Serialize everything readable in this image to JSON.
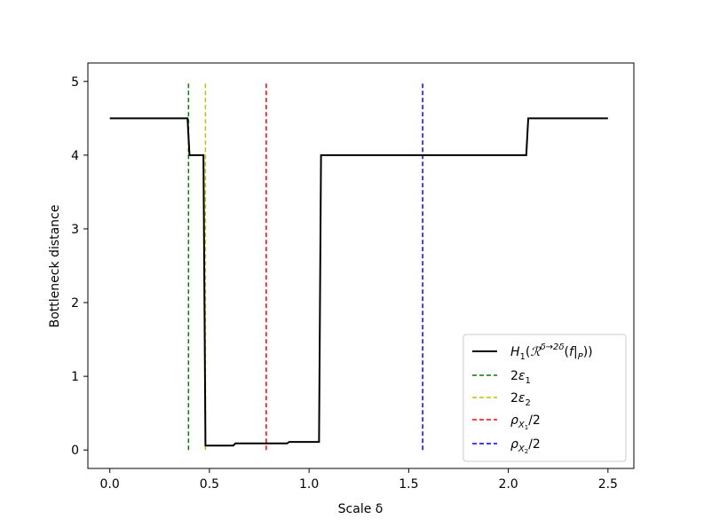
{
  "chart_data": {
    "type": "line",
    "xlabel": "Scale δ",
    "ylabel": "Bottleneck distance",
    "xlim": [
      -0.11,
      2.63
    ],
    "ylim": [
      -0.25,
      5.25
    ],
    "xticks": [
      0.0,
      0.5,
      1.0,
      1.5,
      2.0,
      2.5
    ],
    "xtick_labels": [
      "0.0",
      "0.5",
      "1.0",
      "1.5",
      "2.0",
      "2.5"
    ],
    "yticks": [
      0,
      1,
      2,
      3,
      4,
      5
    ],
    "ytick_labels": [
      "0",
      "1",
      "2",
      "3",
      "4",
      "5"
    ],
    "grid": false,
    "legend_position": "lower-right",
    "series": [
      {
        "name": "H₁(ℛ^{δ→2δ}(f|P))",
        "color": "#000000",
        "style": "solid",
        "x": [
          0.0,
          0.39,
          0.4,
          0.47,
          0.48,
          0.62,
          0.63,
          0.89,
          0.9,
          1.05,
          1.06,
          2.09,
          2.1,
          2.5
        ],
        "y": [
          4.5,
          4.5,
          4.0,
          4.0,
          0.06,
          0.06,
          0.09,
          0.09,
          0.11,
          0.11,
          4.0,
          4.0,
          4.5,
          4.5
        ]
      }
    ],
    "vlines": [
      {
        "name": "2ε₁",
        "x": 0.395,
        "ymin": 0,
        "ymax": 5,
        "color": "#008000",
        "style": "dashed"
      },
      {
        "name": "2ε₂",
        "x": 0.48,
        "ymin": 0,
        "ymax": 5,
        "color": "#bfbf00",
        "style": "dashed"
      },
      {
        "name": "ρX₁/2",
        "x": 0.785,
        "ymin": 0,
        "ymax": 5,
        "color": "#ff0000",
        "style": "dashed"
      },
      {
        "name": "ρX₂/2",
        "x": 1.57,
        "ymin": 0,
        "ymax": 5,
        "color": "#0000ff",
        "style": "dashed"
      }
    ]
  }
}
